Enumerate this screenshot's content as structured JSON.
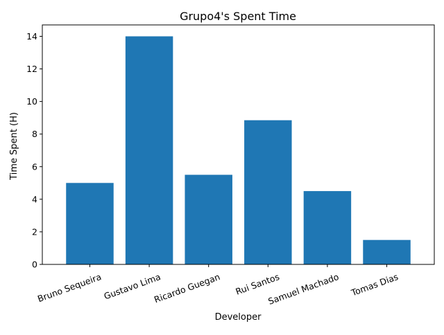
{
  "chart_data": {
    "type": "bar",
    "title": "Grupo4's Spent Time",
    "xlabel": "Developer",
    "ylabel": "Time Spent (H)",
    "categories": [
      "Bruno Sequeira",
      "Gustavo Lima",
      "Ricardo Guegan",
      "Rui Santos",
      "Samuel Machado",
      "Tomas Dias"
    ],
    "values": [
      5,
      14,
      5.5,
      8.85,
      4.5,
      1.5
    ],
    "ylim": [
      0,
      14.7
    ],
    "yticks": [
      "0",
      "2",
      "4",
      "6",
      "8",
      "10",
      "12",
      "14"
    ],
    "grid": false,
    "legend": "none",
    "bar_color": "#1f77b4"
  }
}
